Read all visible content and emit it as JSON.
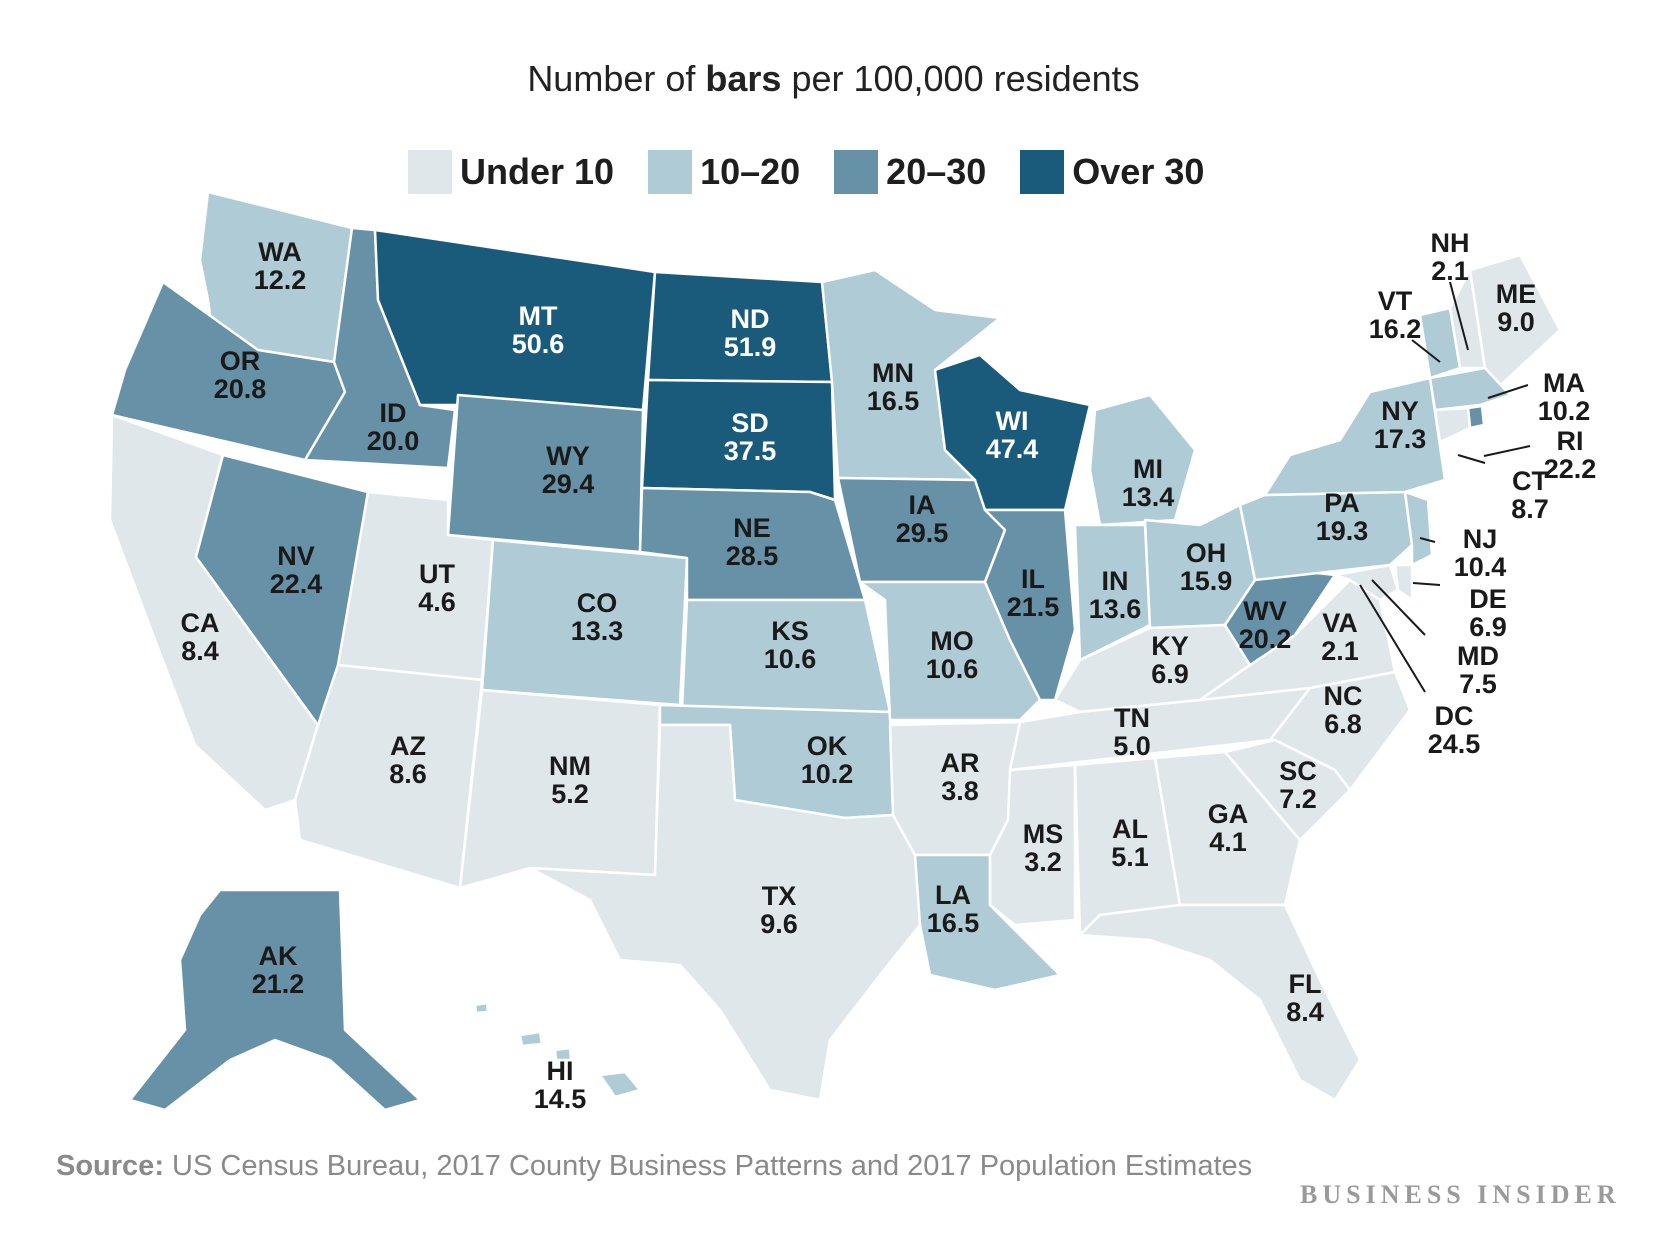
{
  "title": {
    "prefix": "Number of ",
    "bold": "bars",
    "suffix": " per 100,000 residents"
  },
  "legend": [
    {
      "label": "Under 10",
      "color": "#dfe7eb"
    },
    {
      "label": "10–20",
      "color": "#aecbd6"
    },
    {
      "label": "20–30",
      "color": "#6791a6"
    },
    {
      "label": "Over 30",
      "color": "#1a5b7c"
    }
  ],
  "states": [
    {
      "abbr": "WA",
      "value": "12.2"
    },
    {
      "abbr": "OR",
      "value": "20.8"
    },
    {
      "abbr": "CA",
      "value": "8.4"
    },
    {
      "abbr": "NV",
      "value": "22.4"
    },
    {
      "abbr": "ID",
      "value": "20.0"
    },
    {
      "abbr": "MT",
      "value": "50.6"
    },
    {
      "abbr": "WY",
      "value": "29.4"
    },
    {
      "abbr": "UT",
      "value": "4.6"
    },
    {
      "abbr": "AZ",
      "value": "8.6"
    },
    {
      "abbr": "CO",
      "value": "13.3"
    },
    {
      "abbr": "NM",
      "value": "5.2"
    },
    {
      "abbr": "ND",
      "value": "51.9"
    },
    {
      "abbr": "SD",
      "value": "37.5"
    },
    {
      "abbr": "NE",
      "value": "28.5"
    },
    {
      "abbr": "KS",
      "value": "10.6"
    },
    {
      "abbr": "OK",
      "value": "10.2"
    },
    {
      "abbr": "TX",
      "value": "9.6"
    },
    {
      "abbr": "MN",
      "value": "16.5"
    },
    {
      "abbr": "IA",
      "value": "29.5"
    },
    {
      "abbr": "MO",
      "value": "10.6"
    },
    {
      "abbr": "AR",
      "value": "3.8"
    },
    {
      "abbr": "LA",
      "value": "16.5"
    },
    {
      "abbr": "WI",
      "value": "47.4"
    },
    {
      "abbr": "IL",
      "value": "21.5"
    },
    {
      "abbr": "MI",
      "value": "13.4"
    },
    {
      "abbr": "IN",
      "value": "13.6"
    },
    {
      "abbr": "OH",
      "value": "15.9"
    },
    {
      "abbr": "KY",
      "value": "6.9"
    },
    {
      "abbr": "TN",
      "value": "5.0"
    },
    {
      "abbr": "MS",
      "value": "3.2"
    },
    {
      "abbr": "AL",
      "value": "5.1"
    },
    {
      "abbr": "GA",
      "value": "4.1"
    },
    {
      "abbr": "FL",
      "value": "8.4"
    },
    {
      "abbr": "SC",
      "value": "7.2"
    },
    {
      "abbr": "NC",
      "value": "6.8"
    },
    {
      "abbr": "VA",
      "value": "2.1"
    },
    {
      "abbr": "WV",
      "value": "20.2"
    },
    {
      "abbr": "PA",
      "value": "19.3"
    },
    {
      "abbr": "NY",
      "value": "17.3"
    },
    {
      "abbr": "VT",
      "value": "16.2"
    },
    {
      "abbr": "NH",
      "value": "2.1"
    },
    {
      "abbr": "ME",
      "value": "9.0"
    },
    {
      "abbr": "MA",
      "value": "10.2"
    },
    {
      "abbr": "RI",
      "value": "22.2"
    },
    {
      "abbr": "CT",
      "value": "8.7"
    },
    {
      "abbr": "NJ",
      "value": "10.4"
    },
    {
      "abbr": "DE",
      "value": "6.9"
    },
    {
      "abbr": "MD",
      "value": "7.5"
    },
    {
      "abbr": "DC",
      "value": "24.5"
    },
    {
      "abbr": "AK",
      "value": "21.2"
    },
    {
      "abbr": "HI",
      "value": "14.5"
    }
  ],
  "source": {
    "label": "Source:",
    "text": " US Census Bureau, 2017 County Business Patterns and 2017 Population Estimates"
  },
  "brand": "BUSINESS INSIDER"
}
